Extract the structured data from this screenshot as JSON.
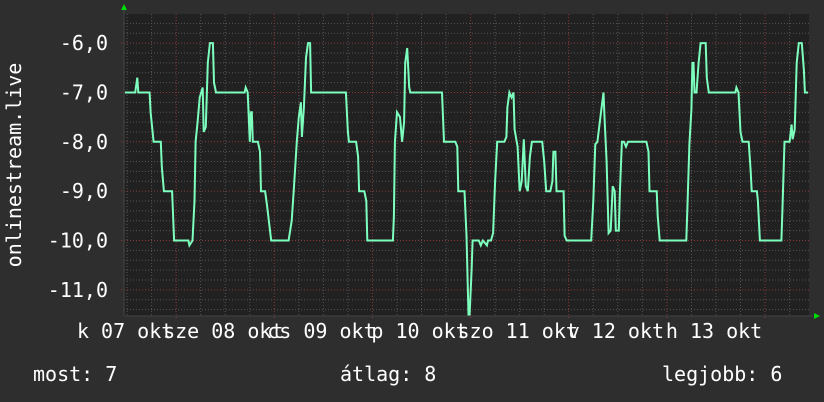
{
  "chart_data": {
    "type": "line",
    "ylabel": "onlinestream.live",
    "xlabel": "",
    "ylim": [
      -11.53,
      -5.41
    ],
    "xlim": [
      "10-06 11:15",
      "10-13 10:45"
    ],
    "grid": true,
    "y_ticks": [
      {
        "value": -6,
        "label": "-6,0"
      },
      {
        "value": -7,
        "label": "-7,0"
      },
      {
        "value": -8,
        "label": "-8,0"
      },
      {
        "value": -9,
        "label": "-9,0"
      },
      {
        "value": -10,
        "label": "-10,0"
      },
      {
        "value": -11,
        "label": "-11,0"
      }
    ],
    "x_ticks": [
      {
        "at": "10-07 00:00",
        "label": "k 07 okt"
      },
      {
        "at": "10-08 00:00",
        "label": "sze 08 okt"
      },
      {
        "at": "10-09 00:00",
        "label": "cs 09 okt"
      },
      {
        "at": "10-10 00:00",
        "label": "p 10 okt"
      },
      {
        "at": "10-11 00:00",
        "label": "szo 11 okt"
      },
      {
        "at": "10-12 00:00",
        "label": "v 12 okt"
      },
      {
        "at": "10-13 00:00",
        "label": "h 13 okt"
      }
    ],
    "colors": {
      "line": "#7dffbe",
      "background": "#2e2e2e",
      "plot": "#212121",
      "major_grid": "#8a3a3a",
      "minor_grid": "#555555",
      "arrow": "#00dd00"
    },
    "series": [
      {
        "points": [
          [
            "10-06 11:30",
            -7.0
          ],
          [
            "10-06 14:00",
            -7.0
          ],
          [
            "10-06 14:30",
            -6.7
          ],
          [
            "10-06 14:45",
            -7.0
          ],
          [
            "10-06 17:30",
            -7.0
          ],
          [
            "10-06 17:45",
            -7.4
          ],
          [
            "10-06 18:30",
            -8.0
          ],
          [
            "10-06 20:15",
            -8.0
          ],
          [
            "10-06 20:30",
            -8.5
          ],
          [
            "10-06 21:00",
            -9.0
          ],
          [
            "10-06 23:00",
            -9.0
          ],
          [
            "10-06 23:30",
            -10.0
          ],
          [
            "10-07 03:00",
            -10.0
          ],
          [
            "10-07 03:15",
            -10.1
          ],
          [
            "10-07 04:00",
            -10.0
          ],
          [
            "10-07 04:30",
            -9.2
          ],
          [
            "10-07 04:45",
            -8.0
          ],
          [
            "10-07 05:15",
            -7.6
          ],
          [
            "10-07 05:45",
            -7.1
          ],
          [
            "10-07 06:30",
            -6.9
          ],
          [
            "10-07 06:45",
            -7.8
          ],
          [
            "10-07 07:15",
            -7.7
          ],
          [
            "10-07 07:45",
            -6.4
          ],
          [
            "10-07 08:15",
            -6.0
          ],
          [
            "10-07 09:00",
            -6.0
          ],
          [
            "10-07 09:15",
            -6.8
          ],
          [
            "10-07 09:45",
            -7.0
          ],
          [
            "10-07 16:45",
            -7.0
          ],
          [
            "10-07 17:00",
            -6.9
          ],
          [
            "10-07 17:30",
            -7.0
          ],
          [
            "10-07 18:00",
            -8.0
          ],
          [
            "10-07 18:15",
            -7.4
          ],
          [
            "10-07 18:30",
            -7.4
          ],
          [
            "10-07 18:45",
            -8.0
          ],
          [
            "10-07 20:00",
            -8.0
          ],
          [
            "10-07 20:30",
            -8.2
          ],
          [
            "10-07 20:45",
            -9.0
          ],
          [
            "10-07 21:45",
            -9.0
          ],
          [
            "10-07 22:15",
            -9.3
          ],
          [
            "10-07 23:15",
            -10.0
          ],
          [
            "10-08 03:30",
            -10.0
          ],
          [
            "10-08 04:15",
            -9.6
          ],
          [
            "10-08 04:45",
            -9.0
          ],
          [
            "10-08 05:30",
            -8.0
          ],
          [
            "10-08 06:00",
            -7.5
          ],
          [
            "10-08 06:30",
            -7.2
          ],
          [
            "10-08 06:45",
            -7.9
          ],
          [
            "10-08 07:15",
            -7.3
          ],
          [
            "10-08 07:45",
            -6.3
          ],
          [
            "10-08 08:15",
            -6.0
          ],
          [
            "10-08 08:45",
            -6.0
          ],
          [
            "10-08 09:00",
            -7.0
          ],
          [
            "10-08 17:30",
            -7.0
          ],
          [
            "10-08 18:00",
            -7.8
          ],
          [
            "10-08 18:15",
            -8.0
          ],
          [
            "10-08 20:00",
            -8.0
          ],
          [
            "10-08 20:30",
            -8.3
          ],
          [
            "10-08 20:45",
            -9.0
          ],
          [
            "10-08 22:00",
            -9.0
          ],
          [
            "10-08 22:30",
            -9.2
          ],
          [
            "10-08 22:45",
            -10.0
          ],
          [
            "10-09 05:00",
            -10.0
          ],
          [
            "10-09 05:15",
            -9.5
          ],
          [
            "10-09 05:30",
            -8.0
          ],
          [
            "10-09 06:00",
            -7.4
          ],
          [
            "10-09 06:45",
            -7.5
          ],
          [
            "10-09 07:15",
            -8.0
          ],
          [
            "10-09 07:45",
            -7.6
          ],
          [
            "10-09 08:00",
            -6.4
          ],
          [
            "10-09 08:30",
            -6.1
          ],
          [
            "10-09 09:00",
            -6.9
          ],
          [
            "10-09 09:15",
            -7.0
          ],
          [
            "10-09 17:00",
            -7.0
          ],
          [
            "10-09 17:30",
            -8.0
          ],
          [
            "10-09 20:15",
            -8.0
          ],
          [
            "10-09 20:45",
            -8.1
          ],
          [
            "10-09 21:00",
            -9.0
          ],
          [
            "10-09 22:30",
            -9.0
          ],
          [
            "10-09 23:00",
            -9.9
          ],
          [
            "10-09 23:30",
            -11.5
          ],
          [
            "10-09 23:45",
            -11.5
          ],
          [
            "10-10 00:15",
            -10.6
          ],
          [
            "10-10 00:30",
            -10.0
          ],
          [
            "10-10 02:00",
            -10.0
          ],
          [
            "10-10 02:30",
            -10.1
          ],
          [
            "10-10 03:00",
            -10.0
          ],
          [
            "10-10 04:00",
            -10.1
          ],
          [
            "10-10 04:15",
            -10.0
          ],
          [
            "10-10 05:00",
            -10.0
          ],
          [
            "10-10 05:30",
            -9.85
          ],
          [
            "10-10 06:00",
            -8.8
          ],
          [
            "10-10 06:30",
            -8.0
          ],
          [
            "10-10 08:15",
            -8.0
          ],
          [
            "10-10 08:45",
            -7.9
          ],
          [
            "10-10 09:00",
            -7.3
          ],
          [
            "10-10 09:30",
            -7.0
          ],
          [
            "10-10 10:00",
            -7.1
          ],
          [
            "10-10 10:30",
            -7.0
          ],
          [
            "10-10 10:45",
            -7.75
          ],
          [
            "10-10 11:30",
            -8.1
          ],
          [
            "10-10 12:00",
            -9.0
          ],
          [
            "10-10 12:30",
            -8.8
          ],
          [
            "10-10 13:00",
            -7.95
          ],
          [
            "10-10 13:30",
            -8.9
          ],
          [
            "10-10 14:00",
            -9.0
          ],
          [
            "10-10 14:30",
            -8.3
          ],
          [
            "10-10 15:00",
            -8.0
          ],
          [
            "10-10 17:30",
            -8.0
          ],
          [
            "10-10 18:00",
            -8.4
          ],
          [
            "10-10 18:30",
            -9.0
          ],
          [
            "10-10 19:30",
            -9.0
          ],
          [
            "10-10 20:00",
            -8.8
          ],
          [
            "10-10 20:15",
            -8.2
          ],
          [
            "10-10 20:45",
            -8.2
          ],
          [
            "10-10 21:00",
            -9.0
          ],
          [
            "10-10 22:45",
            -9.0
          ],
          [
            "10-10 23:00",
            -9.9
          ],
          [
            "10-10 23:30",
            -10.0
          ],
          [
            "10-11 05:30",
            -10.0
          ],
          [
            "10-11 06:00",
            -9.2
          ],
          [
            "10-11 06:30",
            -8.05
          ],
          [
            "10-11 07:00",
            -8.0
          ],
          [
            "10-11 07:45",
            -7.5
          ],
          [
            "10-11 08:30",
            -7.0
          ],
          [
            "10-11 08:45",
            -7.5
          ],
          [
            "10-11 09:15",
            -8.4
          ],
          [
            "10-11 09:45",
            -9.85
          ],
          [
            "10-11 10:15",
            -9.8
          ],
          [
            "10-11 10:45",
            -8.9
          ],
          [
            "10-11 11:15",
            -9.0
          ],
          [
            "10-11 11:30",
            -9.8
          ],
          [
            "10-11 12:15",
            -9.8
          ],
          [
            "10-11 12:30",
            -9.0
          ],
          [
            "10-11 13:00",
            -8.0
          ],
          [
            "10-11 13:30",
            -8.0
          ],
          [
            "10-11 14:00",
            -8.1
          ],
          [
            "10-11 14:30",
            -8.0
          ],
          [
            "10-11 19:00",
            -8.0
          ],
          [
            "10-11 19:30",
            -8.2
          ],
          [
            "10-11 19:45",
            -9.0
          ],
          [
            "10-11 21:30",
            -9.0
          ],
          [
            "10-11 21:45",
            -9.5
          ],
          [
            "10-11 22:15",
            -10.0
          ],
          [
            "10-12 04:45",
            -10.0
          ],
          [
            "10-12 05:00",
            -9.4
          ],
          [
            "10-12 05:30",
            -8.05
          ],
          [
            "10-12 06:00",
            -7.35
          ],
          [
            "10-12 06:15",
            -6.4
          ],
          [
            "10-12 06:30",
            -6.4
          ],
          [
            "10-12 06:45",
            -7.0
          ],
          [
            "10-12 07:15",
            -7.0
          ],
          [
            "10-12 07:45",
            -6.4
          ],
          [
            "10-12 08:15",
            -6.0
          ],
          [
            "10-12 09:30",
            -6.0
          ],
          [
            "10-12 09:45",
            -6.7
          ],
          [
            "10-12 10:15",
            -7.0
          ],
          [
            "10-12 16:45",
            -7.0
          ],
          [
            "10-12 17:00",
            -6.9
          ],
          [
            "10-12 17:30",
            -7.0
          ],
          [
            "10-12 18:00",
            -7.8
          ],
          [
            "10-12 18:30",
            -8.0
          ],
          [
            "10-12 20:00",
            -8.0
          ],
          [
            "10-12 20:30",
            -8.6
          ],
          [
            "10-12 20:45",
            -9.0
          ],
          [
            "10-12 22:00",
            -9.0
          ],
          [
            "10-12 22:15",
            -9.2
          ],
          [
            "10-12 22:45",
            -10.0
          ],
          [
            "10-13 04:00",
            -10.0
          ],
          [
            "10-13 04:15",
            -9.4
          ],
          [
            "10-13 04:45",
            -8.0
          ],
          [
            "10-13 06:00",
            -8.0
          ],
          [
            "10-13 06:30",
            -7.65
          ],
          [
            "10-13 06:45",
            -7.95
          ],
          [
            "10-13 07:15",
            -7.75
          ],
          [
            "10-13 07:45",
            -6.4
          ],
          [
            "10-13 08:15",
            -6.0
          ],
          [
            "10-13 09:00",
            -6.0
          ],
          [
            "10-13 09:30",
            -6.55
          ],
          [
            "10-13 09:45",
            -7.0
          ],
          [
            "10-13 10:30",
            -7.0
          ]
        ]
      }
    ]
  },
  "legend": {
    "current": "most: 7",
    "average": "átlag: 8",
    "best": "legjobb: 6"
  }
}
